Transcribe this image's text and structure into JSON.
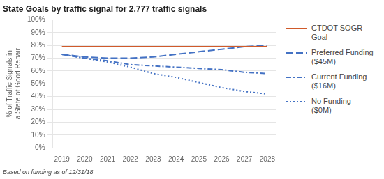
{
  "chart_data": {
    "type": "line",
    "title": "State Goals by traffic signal for 2,777 traffic signals",
    "annotations": [
      "Based on funding as of 12/31/18"
    ],
    "y_label": "% of Traffic Signals in\na State of Good Repair",
    "x": [
      2019,
      2020,
      2021,
      2022,
      2023,
      2024,
      2025,
      2026,
      2027,
      2028
    ],
    "series": [
      {
        "name": "CTDOT SOGR Goal",
        "color": "#D05A2A",
        "line_style": "solid",
        "values": [
          0.79,
          0.79,
          0.79,
          0.79,
          0.79,
          0.79,
          0.79,
          0.79,
          0.79,
          0.79
        ]
      },
      {
        "name": "Preferred Funding\n($45M)",
        "color": "#4472C4",
        "line_style": "dashed",
        "values": [
          0.73,
          0.71,
          0.7,
          0.7,
          0.71,
          0.73,
          0.75,
          0.77,
          0.79,
          0.8
        ]
      },
      {
        "name": "Current Funding\n($16M)",
        "color": "#4472C4",
        "line_style": "dashdot",
        "values": [
          0.73,
          0.7,
          0.68,
          0.65,
          0.64,
          0.63,
          0.62,
          0.61,
          0.59,
          0.58
        ]
      },
      {
        "name": "No Funding\n($0M)",
        "color": "#4472C4",
        "line_style": "dotted",
        "values": [
          0.73,
          0.7,
          0.67,
          0.63,
          0.58,
          0.55,
          0.51,
          0.47,
          0.44,
          0.42
        ]
      }
    ],
    "xlim": [
      2018.6,
      2028.4
    ],
    "xticks": [
      2019,
      2020,
      2021,
      2022,
      2023,
      2024,
      2025,
      2026,
      2027,
      2028
    ],
    "ylim": [
      0,
      1.0
    ],
    "yticks": [
      {
        "value": 0.0,
        "label": "0%"
      },
      {
        "value": 0.1,
        "label": "10%"
      },
      {
        "value": 0.2,
        "label": "20%"
      },
      {
        "value": 0.3,
        "label": "30%"
      },
      {
        "value": 0.4,
        "label": "40%"
      },
      {
        "value": 0.5,
        "label": "50%"
      },
      {
        "value": 0.6,
        "label": "60%"
      },
      {
        "value": 0.7,
        "label": "70%"
      },
      {
        "value": 0.8,
        "label": "80%"
      },
      {
        "value": 0.9,
        "label": "90%"
      },
      {
        "value": 1.0,
        "label": "100%"
      }
    ],
    "grid": "y",
    "legend": "right"
  }
}
